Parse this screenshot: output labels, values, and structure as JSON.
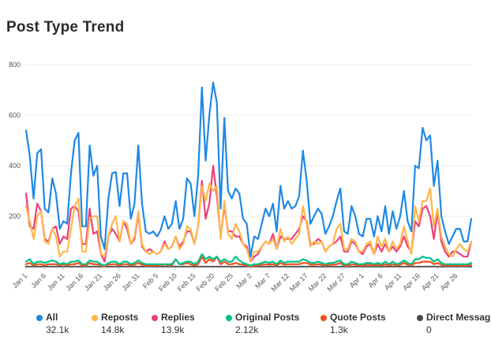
{
  "title": "Post Type Trend",
  "chart_data": {
    "type": "line",
    "title": "Post Type Trend",
    "ylim": [
      0,
      800
    ],
    "yticks": [
      200,
      400,
      600,
      800
    ],
    "grid": true,
    "legend_position": "bottom",
    "x_tick_labels": [
      "Jan 1",
      "Jan 6",
      "Jan 11",
      "Jan 16",
      "Jan 21",
      "Jan 26",
      "Jan 31",
      "Feb 5",
      "Feb 10",
      "Feb 15",
      "Feb 20",
      "Feb 25",
      "Mar 2",
      "Mar 7",
      "Mar 12",
      "Mar 17",
      "Mar 22",
      "Mar 27",
      "Apr 1",
      "Apr 6",
      "Apr 11",
      "Apr 16",
      "Apr 21",
      "Apr 26"
    ],
    "x_tick_day_index": [
      0,
      5,
      10,
      15,
      20,
      25,
      30,
      35,
      40,
      45,
      50,
      55,
      60,
      65,
      70,
      75,
      80,
      85,
      90,
      95,
      100,
      105,
      110,
      115
    ],
    "series": [
      {
        "name": "All",
        "total": "32.1k",
        "color": "#1f88e5",
        "values": [
          540,
          440,
          270,
          450,
          465,
          230,
          215,
          350,
          290,
          150,
          180,
          170,
          370,
          500,
          530,
          160,
          160,
          480,
          360,
          400,
          120,
          70,
          270,
          370,
          375,
          240,
          370,
          370,
          190,
          250,
          480,
          250,
          140,
          130,
          140,
          120,
          145,
          200,
          150,
          170,
          260,
          150,
          190,
          350,
          330,
          200,
          360,
          710,
          420,
          600,
          730,
          650,
          230,
          590,
          300,
          270,
          310,
          290,
          190,
          170,
          40,
          120,
          110,
          170,
          230,
          200,
          250,
          140,
          320,
          230,
          260,
          230,
          240,
          280,
          460,
          340,
          170,
          200,
          230,
          210,
          130,
          160,
          200,
          260,
          310,
          140,
          130,
          240,
          200,
          130,
          120,
          190,
          190,
          120,
          200,
          140,
          240,
          130,
          220,
          150,
          200,
          300,
          180,
          140,
          400,
          390,
          550,
          500,
          520,
          320,
          420,
          200,
          140,
          90,
          120,
          150,
          150,
          100,
          100,
          190
        ]
      },
      {
        "name": "Reposts",
        "total": "14.8k",
        "color": "#ffb74d",
        "values": [
          240,
          180,
          110,
          200,
          220,
          100,
          90,
          150,
          120,
          40,
          60,
          60,
          150,
          240,
          270,
          60,
          60,
          190,
          200,
          200,
          50,
          40,
          120,
          170,
          200,
          100,
          180,
          170,
          90,
          120,
          220,
          90,
          60,
          50,
          60,
          50,
          60,
          90,
          70,
          80,
          120,
          70,
          90,
          160,
          150,
          90,
          160,
          320,
          260,
          330,
          300,
          320,
          110,
          260,
          130,
          110,
          170,
          140,
          90,
          70,
          20,
          60,
          60,
          80,
          100,
          90,
          110,
          70,
          150,
          100,
          120,
          90,
          110,
          130,
          240,
          170,
          80,
          100,
          90,
          100,
          60,
          80,
          90,
          150,
          170,
          70,
          70,
          110,
          100,
          60,
          60,
          90,
          100,
          50,
          120,
          80,
          110,
          60,
          100,
          70,
          90,
          160,
          100,
          50,
          240,
          180,
          260,
          260,
          310,
          160,
          230,
          120,
          80,
          50,
          40,
          70,
          90,
          70,
          60,
          100
        ]
      },
      {
        "name": "Replies",
        "total": "13.9k",
        "color": "#ec407a",
        "values": [
          290,
          160,
          150,
          250,
          220,
          110,
          100,
          150,
          160,
          90,
          120,
          110,
          230,
          240,
          220,
          90,
          90,
          230,
          130,
          140,
          50,
          20,
          120,
          150,
          130,
          100,
          180,
          150,
          90,
          110,
          210,
          80,
          60,
          70,
          60,
          50,
          60,
          100,
          70,
          80,
          120,
          80,
          100,
          140,
          140,
          90,
          160,
          340,
          190,
          250,
          400,
          280,
          120,
          240,
          140,
          140,
          120,
          120,
          90,
          80,
          20,
          40,
          50,
          80,
          100,
          90,
          130,
          70,
          120,
          110,
          110,
          110,
          130,
          150,
          200,
          180,
          90,
          90,
          110,
          100,
          60,
          80,
          90,
          100,
          120,
          60,
          60,
          100,
          90,
          60,
          50,
          80,
          90,
          50,
          90,
          60,
          90,
          60,
          80,
          60,
          80,
          120,
          80,
          60,
          180,
          160,
          230,
          240,
          200,
          110,
          220,
          100,
          60,
          40,
          60,
          60,
          50,
          40,
          40,
          100
        ]
      },
      {
        "name": "Original Posts",
        "total": "2.12k",
        "color": "#00c389",
        "values": [
          20,
          30,
          10,
          20,
          20,
          15,
          20,
          25,
          20,
          10,
          15,
          10,
          20,
          20,
          25,
          10,
          10,
          25,
          20,
          20,
          10,
          5,
          15,
          20,
          20,
          10,
          20,
          20,
          10,
          15,
          25,
          15,
          10,
          10,
          10,
          10,
          10,
          10,
          10,
          10,
          30,
          10,
          15,
          20,
          20,
          10,
          20,
          50,
          30,
          40,
          30,
          40,
          20,
          30,
          20,
          20,
          40,
          25,
          15,
          10,
          5,
          10,
          10,
          15,
          20,
          15,
          20,
          10,
          25,
          15,
          20,
          20,
          20,
          20,
          30,
          25,
          15,
          15,
          20,
          15,
          10,
          15,
          15,
          20,
          25,
          10,
          10,
          20,
          15,
          10,
          10,
          15,
          15,
          10,
          15,
          10,
          20,
          10,
          20,
          10,
          15,
          25,
          15,
          10,
          30,
          30,
          40,
          35,
          35,
          20,
          30,
          15,
          10,
          10,
          10,
          10,
          10,
          10,
          10,
          15
        ]
      },
      {
        "name": "Quote Posts",
        "total": "1.3k",
        "color": "#f4511e",
        "values": [
          10,
          15,
          5,
          10,
          10,
          5,
          10,
          10,
          10,
          5,
          10,
          5,
          10,
          10,
          15,
          5,
          5,
          15,
          10,
          10,
          5,
          2,
          8,
          10,
          10,
          5,
          10,
          10,
          5,
          8,
          15,
          8,
          5,
          5,
          5,
          5,
          5,
          10,
          5,
          5,
          30,
          10,
          10,
          15,
          10,
          5,
          10,
          40,
          15,
          30,
          20,
          40,
          10,
          20,
          10,
          10,
          15,
          10,
          8,
          5,
          2,
          5,
          5,
          8,
          10,
          8,
          10,
          5,
          15,
          8,
          10,
          10,
          10,
          10,
          15,
          15,
          8,
          8,
          10,
          8,
          5,
          8,
          8,
          10,
          15,
          5,
          5,
          10,
          8,
          5,
          5,
          8,
          8,
          5,
          8,
          5,
          10,
          5,
          10,
          5,
          8,
          15,
          8,
          5,
          15,
          15,
          20,
          20,
          20,
          10,
          15,
          8,
          5,
          5,
          5,
          5,
          5,
          5,
          5,
          8
        ]
      },
      {
        "name": "Direct Messages",
        "total": "0",
        "color": "#4a4a4a",
        "values": [
          0,
          0,
          0,
          0,
          0,
          0,
          0,
          0,
          0,
          0,
          0,
          0,
          0,
          0,
          0,
          0,
          0,
          0,
          0,
          0,
          0,
          0,
          0,
          0,
          0,
          0,
          0,
          0,
          0,
          0,
          0,
          0,
          0,
          0,
          0,
          0,
          0,
          0,
          0,
          0,
          0,
          0,
          0,
          0,
          0,
          0,
          0,
          0,
          0,
          0,
          0,
          0,
          0,
          0,
          0,
          0,
          0,
          0,
          0,
          0,
          0,
          0,
          0,
          0,
          0,
          0,
          0,
          0,
          0,
          0,
          0,
          0,
          0,
          0,
          0,
          0,
          0,
          0,
          0,
          0,
          0,
          0,
          0,
          0,
          0,
          0,
          0,
          0,
          0,
          0,
          0,
          0,
          0,
          0,
          0,
          0,
          0,
          0,
          0,
          0,
          0,
          0,
          0,
          0,
          0,
          0,
          0,
          0,
          0,
          0,
          0,
          0,
          0,
          0,
          0,
          0,
          0,
          0,
          0,
          0
        ]
      }
    ]
  }
}
